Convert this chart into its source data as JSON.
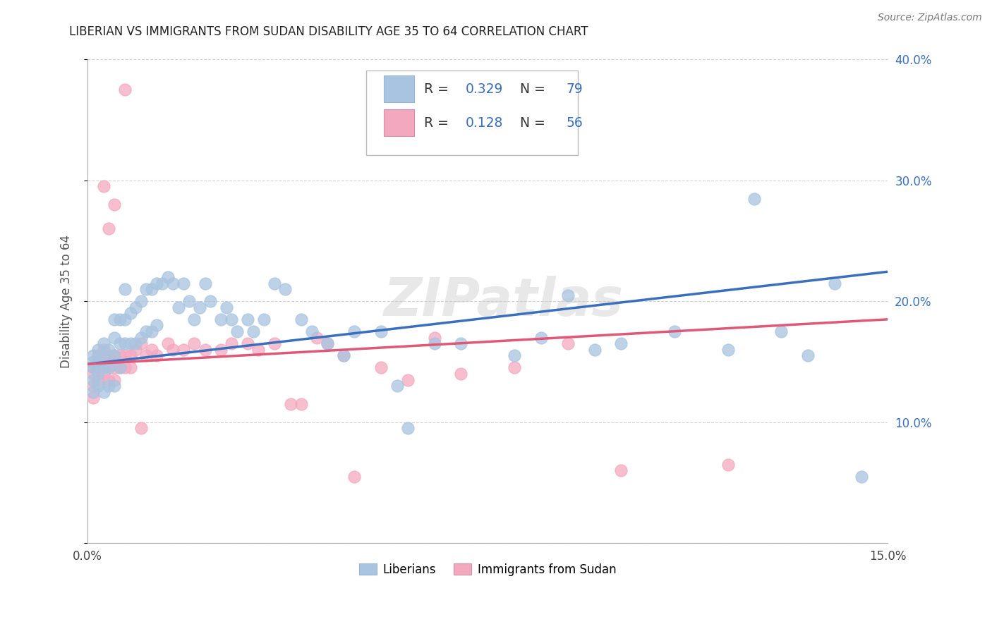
{
  "title": "LIBERIAN VS IMMIGRANTS FROM SUDAN DISABILITY AGE 35 TO 64 CORRELATION CHART",
  "source": "Source: ZipAtlas.com",
  "ylabel": "Disability Age 35 to 64",
  "xlim": [
    0,
    0.15
  ],
  "ylim": [
    0,
    0.4
  ],
  "legend_labels": [
    "Liberians",
    "Immigrants from Sudan"
  ],
  "R_blue": 0.329,
  "N_blue": 79,
  "R_pink": 0.128,
  "N_pink": 56,
  "blue_color": "#a8c4e0",
  "pink_color": "#f4a8c0",
  "blue_line_color": "#3a6fbd",
  "pink_line_color": "#e05878",
  "watermark": "ZIPatlas",
  "blue_x": [
    0.001,
    0.001,
    0.001,
    0.001,
    0.001,
    0.002,
    0.002,
    0.002,
    0.002,
    0.003,
    0.003,
    0.003,
    0.003,
    0.004,
    0.004,
    0.004,
    0.005,
    0.005,
    0.005,
    0.005,
    0.006,
    0.006,
    0.006,
    0.007,
    0.007,
    0.007,
    0.008,
    0.008,
    0.009,
    0.009,
    0.01,
    0.01,
    0.011,
    0.011,
    0.012,
    0.012,
    0.013,
    0.013,
    0.014,
    0.015,
    0.016,
    0.017,
    0.018,
    0.019,
    0.02,
    0.021,
    0.022,
    0.023,
    0.025,
    0.026,
    0.027,
    0.028,
    0.03,
    0.031,
    0.033,
    0.035,
    0.037,
    0.04,
    0.042,
    0.045,
    0.048,
    0.05,
    0.055,
    0.058,
    0.06,
    0.065,
    0.07,
    0.08,
    0.085,
    0.09,
    0.095,
    0.1,
    0.11,
    0.12,
    0.125,
    0.13,
    0.135,
    0.14,
    0.145
  ],
  "blue_y": [
    0.155,
    0.15,
    0.145,
    0.135,
    0.125,
    0.16,
    0.15,
    0.14,
    0.13,
    0.165,
    0.155,
    0.145,
    0.125,
    0.16,
    0.145,
    0.13,
    0.185,
    0.17,
    0.155,
    0.13,
    0.185,
    0.165,
    0.145,
    0.21,
    0.185,
    0.165,
    0.19,
    0.165,
    0.195,
    0.165,
    0.2,
    0.17,
    0.21,
    0.175,
    0.21,
    0.175,
    0.215,
    0.18,
    0.215,
    0.22,
    0.215,
    0.195,
    0.215,
    0.2,
    0.185,
    0.195,
    0.215,
    0.2,
    0.185,
    0.195,
    0.185,
    0.175,
    0.185,
    0.175,
    0.185,
    0.215,
    0.21,
    0.185,
    0.175,
    0.165,
    0.155,
    0.175,
    0.175,
    0.13,
    0.095,
    0.165,
    0.165,
    0.155,
    0.17,
    0.205,
    0.16,
    0.165,
    0.175,
    0.16,
    0.285,
    0.175,
    0.155,
    0.215,
    0.055
  ],
  "pink_x": [
    0.001,
    0.001,
    0.001,
    0.001,
    0.002,
    0.002,
    0.002,
    0.003,
    0.003,
    0.003,
    0.004,
    0.004,
    0.004,
    0.005,
    0.005,
    0.005,
    0.006,
    0.006,
    0.007,
    0.007,
    0.008,
    0.008,
    0.009,
    0.01,
    0.011,
    0.012,
    0.013,
    0.015,
    0.016,
    0.018,
    0.02,
    0.022,
    0.025,
    0.027,
    0.03,
    0.032,
    0.035,
    0.038,
    0.04,
    0.043,
    0.045,
    0.048,
    0.05,
    0.055,
    0.06,
    0.065,
    0.07,
    0.08,
    0.09,
    0.1,
    0.003,
    0.004,
    0.005,
    0.007,
    0.01,
    0.12
  ],
  "pink_y": [
    0.145,
    0.14,
    0.13,
    0.12,
    0.155,
    0.145,
    0.135,
    0.16,
    0.15,
    0.14,
    0.155,
    0.145,
    0.135,
    0.155,
    0.145,
    0.135,
    0.155,
    0.145,
    0.155,
    0.145,
    0.155,
    0.145,
    0.16,
    0.165,
    0.155,
    0.16,
    0.155,
    0.165,
    0.16,
    0.16,
    0.165,
    0.16,
    0.16,
    0.165,
    0.165,
    0.16,
    0.165,
    0.115,
    0.115,
    0.17,
    0.165,
    0.155,
    0.055,
    0.145,
    0.135,
    0.17,
    0.14,
    0.145,
    0.165,
    0.06,
    0.295,
    0.26,
    0.28,
    0.375,
    0.095,
    0.065
  ]
}
